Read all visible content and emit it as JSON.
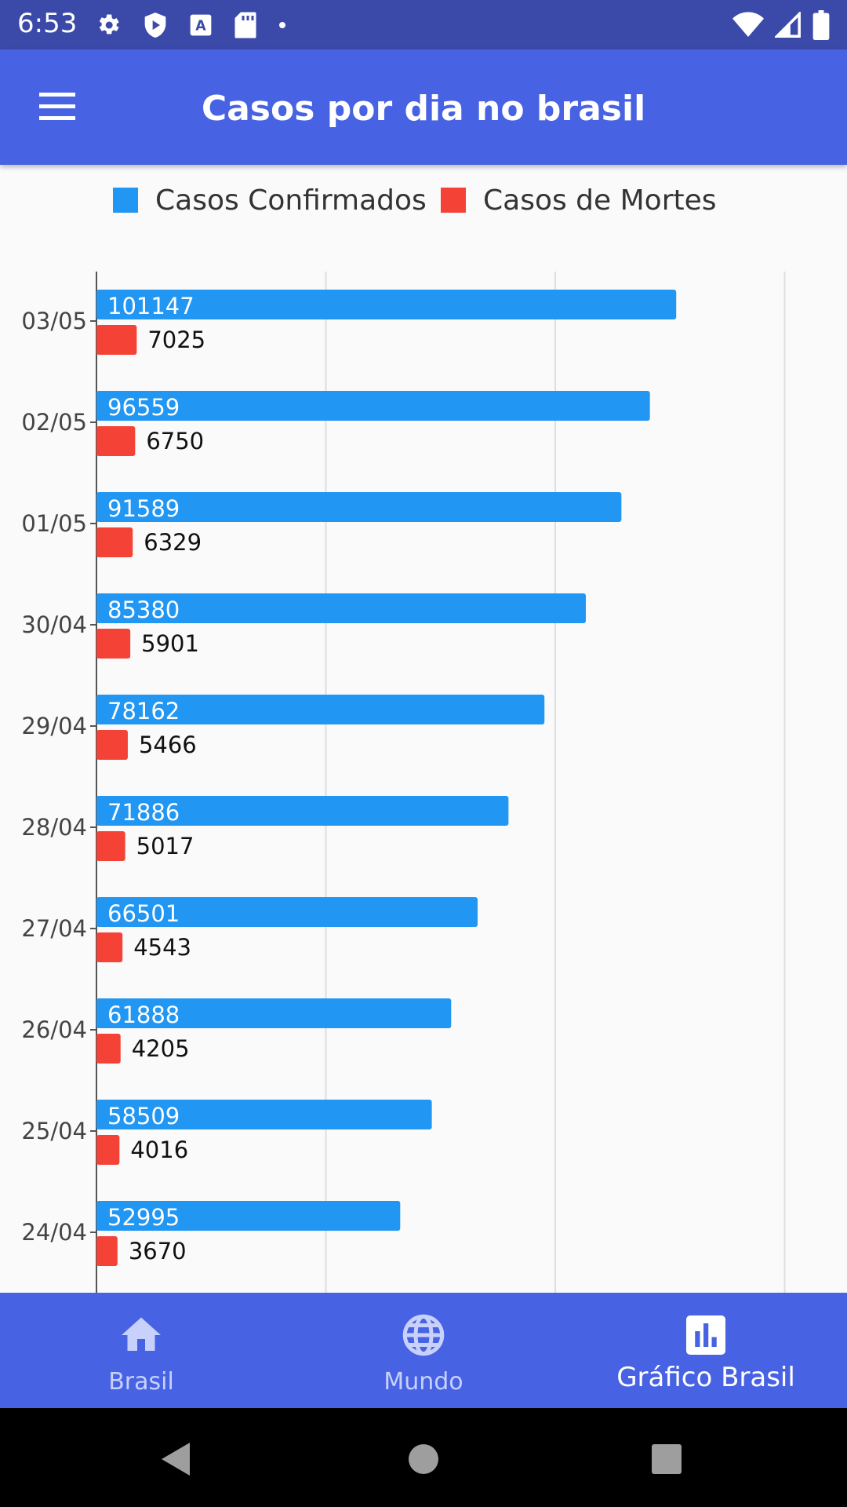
{
  "status_bar": {
    "time": "6:53",
    "left_icons": [
      "settings-icon",
      "play-protect-icon",
      "text-icon",
      "sd-card-icon",
      "dot-icon"
    ],
    "right_icons": [
      "wifi-icon",
      "signal-icon",
      "battery-icon"
    ]
  },
  "app_bar": {
    "title": "Casos por dia no brasil",
    "menu_icon": "hamburger-menu-icon"
  },
  "legend": [
    {
      "label": "Casos Confirmados",
      "color": "#2196f3"
    },
    {
      "label": "Casos de Mortes",
      "color": "#f44336"
    }
  ],
  "chart_data": {
    "type": "bar",
    "orientation": "horizontal",
    "categories": [
      "03/05",
      "02/05",
      "01/05",
      "30/04",
      "29/04",
      "28/04",
      "27/04",
      "26/04",
      "25/04",
      "24/04"
    ],
    "series": [
      {
        "name": "Casos Confirmados",
        "color": "#2196f3",
        "values": [
          101147,
          96559,
          91589,
          85380,
          78162,
          71886,
          66501,
          61888,
          58509,
          52995
        ]
      },
      {
        "name": "Casos de Mortes",
        "color": "#f44336",
        "values": [
          7025,
          6750,
          6329,
          5901,
          5466,
          5017,
          4543,
          4205,
          4016,
          3670
        ]
      }
    ],
    "xlim": [
      0,
      120000
    ],
    "grid": true,
    "legend_position": "top"
  },
  "bottom_nav": {
    "items": [
      {
        "label": "Brasil",
        "icon": "home-icon",
        "active": false
      },
      {
        "label": "Mundo",
        "icon": "globe-icon",
        "active": false
      },
      {
        "label": "Gráfico Brasil",
        "icon": "bar-chart-icon",
        "active": true
      }
    ],
    "background": "#4763e3"
  },
  "system_nav": {
    "buttons": [
      "back-icon",
      "home-circle-icon",
      "recents-icon"
    ]
  }
}
